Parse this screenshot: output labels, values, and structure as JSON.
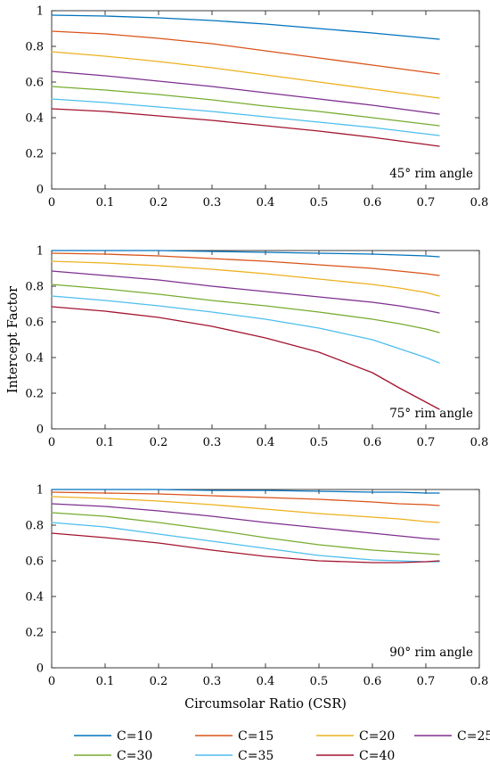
{
  "chart_data": [
    {
      "type": "line",
      "annotation": "45° rim angle",
      "xlabel": "",
      "ylabel": "",
      "xlim": [
        0,
        0.8
      ],
      "ylim": [
        0,
        1
      ],
      "xticks": [
        "0",
        "0.1",
        "0.2",
        "0.3",
        "0.4",
        "0.5",
        "0.6",
        "0.7",
        "0.8"
      ],
      "yticks": [
        "0",
        "0.2",
        "0.4",
        "0.6",
        "0.8",
        "1"
      ],
      "grid": false,
      "x": [
        0,
        0.1,
        0.2,
        0.3,
        0.4,
        0.5,
        0.6,
        0.725
      ],
      "series": [
        {
          "name": "C=10",
          "values": [
            0.975,
            0.97,
            0.96,
            0.945,
            0.925,
            0.9,
            0.875,
            0.84
          ]
        },
        {
          "name": "C=15",
          "values": [
            0.885,
            0.87,
            0.845,
            0.815,
            0.775,
            0.735,
            0.695,
            0.645
          ]
        },
        {
          "name": "C=20",
          "values": [
            0.77,
            0.745,
            0.715,
            0.68,
            0.64,
            0.6,
            0.56,
            0.51
          ]
        },
        {
          "name": "C=25",
          "values": [
            0.66,
            0.635,
            0.605,
            0.575,
            0.54,
            0.505,
            0.47,
            0.42
          ]
        },
        {
          "name": "C=30",
          "values": [
            0.575,
            0.555,
            0.53,
            0.5,
            0.465,
            0.435,
            0.4,
            0.355
          ]
        },
        {
          "name": "C=35",
          "values": [
            0.505,
            0.485,
            0.46,
            0.435,
            0.405,
            0.375,
            0.345,
            0.3
          ]
        },
        {
          "name": "C=40",
          "values": [
            0.45,
            0.435,
            0.41,
            0.385,
            0.355,
            0.325,
            0.29,
            0.24
          ]
        }
      ]
    },
    {
      "type": "line",
      "annotation": "75° rim angle",
      "xlabel": "",
      "ylabel": "Intercept Factor",
      "xlim": [
        0,
        0.8
      ],
      "ylim": [
        0,
        1
      ],
      "xticks": [
        "0",
        "0.1",
        "0.2",
        "0.3",
        "0.4",
        "0.5",
        "0.6",
        "0.7",
        "0.8"
      ],
      "yticks": [
        "0",
        "0.2",
        "0.4",
        "0.6",
        "0.8",
        "1"
      ],
      "grid": false,
      "x": [
        0,
        0.1,
        0.2,
        0.3,
        0.4,
        0.5,
        0.6,
        0.65,
        0.7,
        0.725
      ],
      "series": [
        {
          "name": "C=10",
          "values": [
            1.0,
            1.0,
            1.0,
            0.995,
            0.99,
            0.985,
            0.98,
            0.975,
            0.97,
            0.965
          ]
        },
        {
          "name": "C=15",
          "values": [
            0.985,
            0.98,
            0.97,
            0.955,
            0.94,
            0.92,
            0.9,
            0.885,
            0.87,
            0.86
          ]
        },
        {
          "name": "C=20",
          "values": [
            0.94,
            0.93,
            0.915,
            0.895,
            0.87,
            0.84,
            0.81,
            0.79,
            0.765,
            0.745
          ]
        },
        {
          "name": "C=25",
          "values": [
            0.885,
            0.86,
            0.835,
            0.8,
            0.77,
            0.74,
            0.71,
            0.69,
            0.665,
            0.65
          ]
        },
        {
          "name": "C=30",
          "values": [
            0.81,
            0.785,
            0.755,
            0.72,
            0.69,
            0.655,
            0.615,
            0.59,
            0.56,
            0.54
          ]
        },
        {
          "name": "C=35",
          "values": [
            0.745,
            0.72,
            0.69,
            0.655,
            0.615,
            0.565,
            0.5,
            0.45,
            0.4,
            0.37
          ]
        },
        {
          "name": "C=40",
          "values": [
            0.685,
            0.66,
            0.625,
            0.575,
            0.51,
            0.43,
            0.315,
            0.23,
            0.15,
            0.11
          ]
        }
      ]
    },
    {
      "type": "line",
      "annotation": "90° rim angle",
      "xlabel": "Circumsolar Ratio (CSR)",
      "ylabel": "",
      "xlim": [
        0,
        0.8
      ],
      "ylim": [
        0,
        1
      ],
      "xticks": [
        "0",
        "0.1",
        "0.2",
        "0.3",
        "0.4",
        "0.5",
        "0.6",
        "0.7",
        "0.8"
      ],
      "yticks": [
        "0",
        "0.2",
        "0.4",
        "0.6",
        "0.8",
        "1"
      ],
      "grid": false,
      "x": [
        0,
        0.1,
        0.2,
        0.3,
        0.4,
        0.5,
        0.6,
        0.65,
        0.7,
        0.725
      ],
      "series": [
        {
          "name": "C=10",
          "values": [
            1.0,
            1.0,
            1.0,
            0.995,
            0.995,
            0.99,
            0.985,
            0.985,
            0.98,
            0.98
          ]
        },
        {
          "name": "C=15",
          "values": [
            0.985,
            0.98,
            0.975,
            0.965,
            0.955,
            0.945,
            0.93,
            0.92,
            0.915,
            0.91
          ]
        },
        {
          "name": "C=20",
          "values": [
            0.96,
            0.95,
            0.935,
            0.915,
            0.89,
            0.865,
            0.845,
            0.835,
            0.82,
            0.815
          ]
        },
        {
          "name": "C=25",
          "values": [
            0.92,
            0.905,
            0.88,
            0.85,
            0.815,
            0.785,
            0.755,
            0.74,
            0.725,
            0.72
          ]
        },
        {
          "name": "C=30",
          "values": [
            0.87,
            0.85,
            0.815,
            0.775,
            0.73,
            0.69,
            0.66,
            0.65,
            0.64,
            0.635
          ]
        },
        {
          "name": "C=35",
          "values": [
            0.815,
            0.79,
            0.75,
            0.71,
            0.67,
            0.63,
            0.605,
            0.6,
            0.595,
            0.595
          ]
        },
        {
          "name": "C=40",
          "values": [
            0.755,
            0.73,
            0.7,
            0.66,
            0.625,
            0.6,
            0.59,
            0.59,
            0.595,
            0.6
          ]
        }
      ]
    }
  ],
  "legend": {
    "placement": "bottom",
    "entries": [
      {
        "name": "C=10",
        "color": "#0072BD"
      },
      {
        "name": "C=15",
        "color": "#D95319"
      },
      {
        "name": "C=20",
        "color": "#EDB120"
      },
      {
        "name": "C=25",
        "color": "#7E2F8E"
      },
      {
        "name": "C=30",
        "color": "#77AC30"
      },
      {
        "name": "C=35",
        "color": "#4DBEEE"
      },
      {
        "name": "C=40",
        "color": "#A2142F"
      }
    ]
  }
}
